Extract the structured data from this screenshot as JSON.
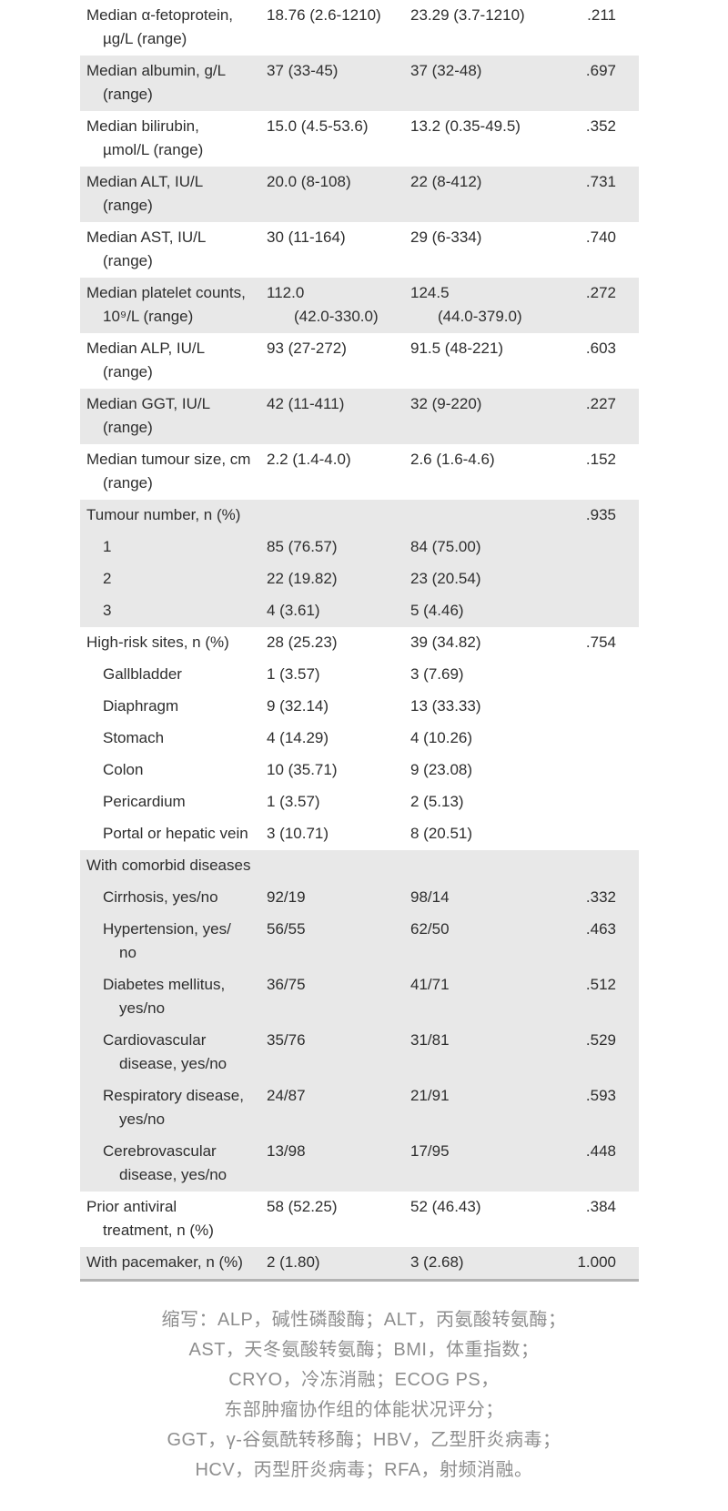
{
  "colors": {
    "background": "#ffffff",
    "text": "#2e2e2e",
    "row_shade": "#e8e8e8",
    "bottom_rule": "#b3b3b3",
    "footer_text": "#8e8e8e"
  },
  "table": {
    "rows": [
      {
        "label": [
          "Median α-fetoprotein,",
          "µg/L (range)"
        ],
        "c1": [
          "18.76 (2.6-1210)"
        ],
        "c2": [
          "23.29 (3.7-1210)"
        ],
        "p": ".211",
        "shaded": false,
        "indent": 0
      },
      {
        "label": [
          "Median albumin, g/L",
          "(range)"
        ],
        "c1": [
          "37 (33-45)"
        ],
        "c2": [
          "37 (32-48)"
        ],
        "p": ".697",
        "shaded": true,
        "indent": 0
      },
      {
        "label": [
          "Median bilirubin,",
          "µmol/L (range)"
        ],
        "c1": [
          "15.0 (4.5-53.6)"
        ],
        "c2": [
          "13.2 (0.35-49.5)"
        ],
        "p": ".352",
        "shaded": false,
        "indent": 0
      },
      {
        "label": [
          "Median ALT, IU/L",
          "(range)"
        ],
        "c1": [
          "20.0 (8-108)"
        ],
        "c2": [
          "22 (8-412)"
        ],
        "p": ".731",
        "shaded": true,
        "indent": 0
      },
      {
        "label": [
          "Median AST, IU/L",
          "(range)"
        ],
        "c1": [
          "30 (11-164)"
        ],
        "c2": [
          "29 (6-334)"
        ],
        "p": ".740",
        "shaded": false,
        "indent": 0
      },
      {
        "label": [
          "Median platelet counts,",
          "10⁹/L (range)"
        ],
        "c1": [
          "112.0",
          "(42.0-330.0)"
        ],
        "c2": [
          "124.5",
          "(44.0-379.0)"
        ],
        "p": ".272",
        "shaded": true,
        "indent": 0
      },
      {
        "label": [
          "Median ALP, IU/L",
          "(range)"
        ],
        "c1": [
          "93 (27-272)"
        ],
        "c2": [
          "91.5 (48-221)"
        ],
        "p": ".603",
        "shaded": false,
        "indent": 0
      },
      {
        "label": [
          "Median GGT, IU/L",
          "(range)"
        ],
        "c1": [
          "42 (11-411)"
        ],
        "c2": [
          "32 (9-220)"
        ],
        "p": ".227",
        "shaded": true,
        "indent": 0
      },
      {
        "label": [
          "Median tumour size, cm",
          "(range)"
        ],
        "c1": [
          "2.2 (1.4-4.0)"
        ],
        "c2": [
          "2.6 (1.6-4.6)"
        ],
        "p": ".152",
        "shaded": false,
        "indent": 0
      },
      {
        "label": [
          "Tumour number, n (%)"
        ],
        "c1": [],
        "c2": [],
        "p": ".935",
        "shaded": true,
        "indent": 0
      },
      {
        "label": [
          "1"
        ],
        "c1": [
          "85 (76.57)"
        ],
        "c2": [
          "84 (75.00)"
        ],
        "p": "",
        "shaded": true,
        "indent": 1
      },
      {
        "label": [
          "2"
        ],
        "c1": [
          "22 (19.82)"
        ],
        "c2": [
          "23 (20.54)"
        ],
        "p": "",
        "shaded": true,
        "indent": 1
      },
      {
        "label": [
          "3"
        ],
        "c1": [
          "4 (3.61)"
        ],
        "c2": [
          "5 (4.46)"
        ],
        "p": "",
        "shaded": true,
        "indent": 1
      },
      {
        "label": [
          "High-risk sites, n (%)"
        ],
        "c1": [
          "28 (25.23)"
        ],
        "c2": [
          "39 (34.82)"
        ],
        "p": ".754",
        "shaded": false,
        "indent": 0
      },
      {
        "label": [
          "Gallbladder"
        ],
        "c1": [
          "1 (3.57)"
        ],
        "c2": [
          "3 (7.69)"
        ],
        "p": "",
        "shaded": false,
        "indent": 1
      },
      {
        "label": [
          "Diaphragm"
        ],
        "c1": [
          "9 (32.14)"
        ],
        "c2": [
          "13 (33.33)"
        ],
        "p": "",
        "shaded": false,
        "indent": 1
      },
      {
        "label": [
          "Stomach"
        ],
        "c1": [
          "4 (14.29)"
        ],
        "c2": [
          "4 (10.26)"
        ],
        "p": "",
        "shaded": false,
        "indent": 1
      },
      {
        "label": [
          "Colon"
        ],
        "c1": [
          "10 (35.71)"
        ],
        "c2": [
          "9 (23.08)"
        ],
        "p": "",
        "shaded": false,
        "indent": 1
      },
      {
        "label": [
          "Pericardium"
        ],
        "c1": [
          "1 (3.57)"
        ],
        "c2": [
          "2 (5.13)"
        ],
        "p": "",
        "shaded": false,
        "indent": 1
      },
      {
        "label": [
          "Portal or hepatic vein"
        ],
        "c1": [
          "3 (10.71)"
        ],
        "c2": [
          "8 (20.51)"
        ],
        "p": "",
        "shaded": false,
        "indent": 1
      },
      {
        "label": [
          "With comorbid diseases"
        ],
        "c1": [],
        "c2": [],
        "p": "",
        "shaded": true,
        "indent": 0
      },
      {
        "label": [
          "Cirrhosis, yes/no"
        ],
        "c1": [
          "92/19"
        ],
        "c2": [
          "98/14"
        ],
        "p": ".332",
        "shaded": true,
        "indent": 1
      },
      {
        "label": [
          "Hypertension, yes/",
          "no"
        ],
        "c1": [
          "56/55"
        ],
        "c2": [
          "62/50"
        ],
        "p": ".463",
        "shaded": true,
        "indent": 1
      },
      {
        "label": [
          "Diabetes mellitus,",
          "yes/no"
        ],
        "c1": [
          "36/75"
        ],
        "c2": [
          "41/71"
        ],
        "p": ".512",
        "shaded": true,
        "indent": 1
      },
      {
        "label": [
          "Cardiovascular",
          "disease, yes/no"
        ],
        "c1": [
          "35/76"
        ],
        "c2": [
          "31/81"
        ],
        "p": ".529",
        "shaded": true,
        "indent": 1
      },
      {
        "label": [
          "Respiratory disease,",
          "yes/no"
        ],
        "c1": [
          "24/87"
        ],
        "c2": [
          "21/91"
        ],
        "p": ".593",
        "shaded": true,
        "indent": 1
      },
      {
        "label": [
          "Cerebrovascular",
          "disease, yes/no"
        ],
        "c1": [
          "13/98"
        ],
        "c2": [
          "17/95"
        ],
        "p": ".448",
        "shaded": true,
        "indent": 1
      },
      {
        "label": [
          "Prior antiviral",
          "treatment, n (%)"
        ],
        "c1": [
          "58 (52.25)"
        ],
        "c2": [
          "52 (46.43)"
        ],
        "p": ".384",
        "shaded": false,
        "indent": 0
      },
      {
        "label": [
          "With pacemaker, n (%)"
        ],
        "c1": [
          "2 (1.80)"
        ],
        "c2": [
          "3 (2.68)"
        ],
        "p": "1.000",
        "shaded": true,
        "indent": 0
      }
    ]
  },
  "footer": {
    "lines": [
      "缩写：ALP，碱性磷酸酶；ALT，丙氨酸转氨酶；",
      "AST，天冬氨酸转氨酶；BMI，体重指数；",
      "CRYO，冷冻消融；ECOG PS，",
      "东部肿瘤协作组的体能状况评分；",
      "GGT，γ-谷氨酰转移酶；HBV，乙型肝炎病毒；",
      "HCV，丙型肝炎病毒；RFA，射频消融。"
    ]
  }
}
